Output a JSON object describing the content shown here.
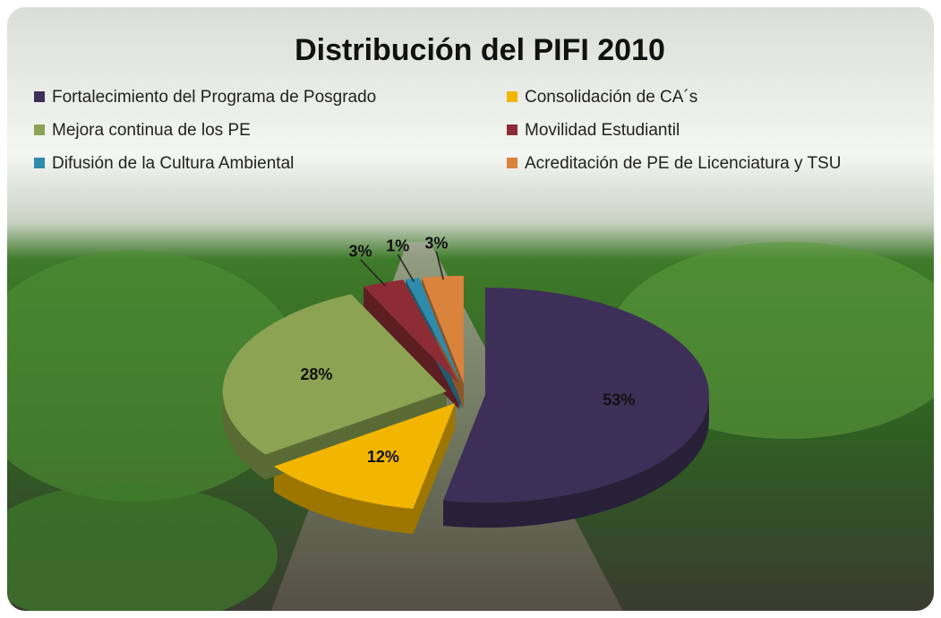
{
  "chart_data": {
    "type": "pie3d",
    "title": "Distribución del PIFI 2010",
    "categories": [
      "Fortalecimiento del Programa de Posgrado",
      "Consolidación de CA´s",
      "Mejora continua de los PE",
      "Movilidad Estudiantil",
      "Difusión de la Cultura Ambiental",
      "Acreditación de PE de Licenciatura y TSU"
    ],
    "values": [
      53,
      12,
      28,
      3,
      1,
      3
    ],
    "value_labels": [
      "53%",
      "12%",
      "28%",
      "3%",
      "1%",
      "3%"
    ],
    "colors": [
      "#3d2f57",
      "#f2b500",
      "#8ba352",
      "#8e2c36",
      "#2f8bab",
      "#d9833d"
    ]
  }
}
